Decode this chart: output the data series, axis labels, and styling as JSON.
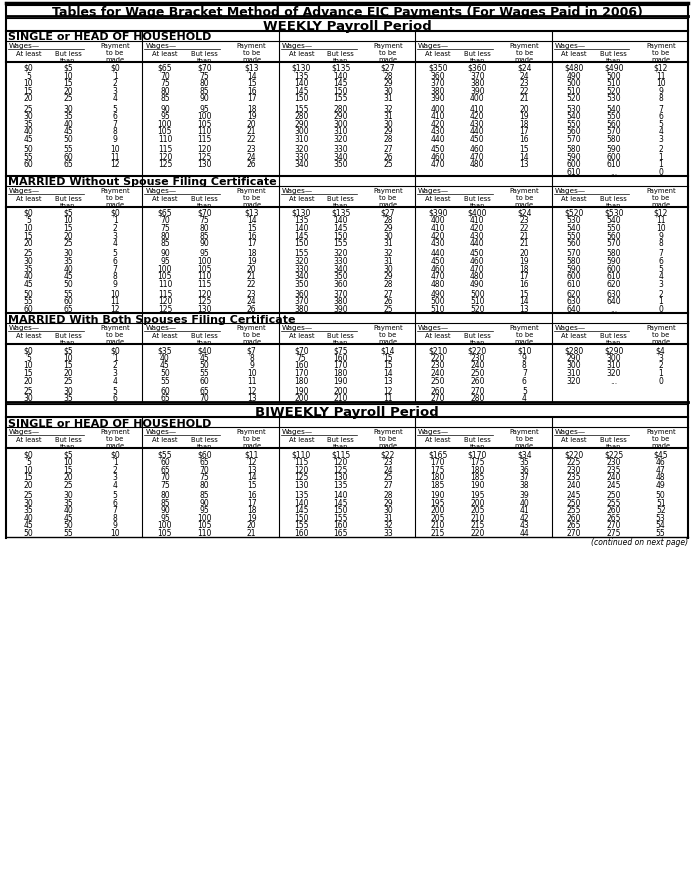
{
  "title": "Tables for Wage Bracket Method of Advance EIC Payments (For Wages Paid in 2006)",
  "section1_title": "WEEKLY Payroll Period",
  "section1_sub1": "SINGLE or HEAD OF HOUSEHOLD",
  "section1_sub2": "MARRIED Without Spouse Filing Certificate",
  "section1_sub3": "MARRIED With Both Spouses Filing Certificate",
  "section2_title": "BIWEEKLY Payroll Period",
  "section2_sub1": "SINGLE or HEAD OF HOUSEHOLD",
  "weekly_single": [
    [
      "$0",
      "$5",
      "$0",
      "$65",
      "$70",
      "$13",
      "$130",
      "$135",
      "$27",
      "$350",
      "$360",
      "$24",
      "$480",
      "$490",
      "$12"
    ],
    [
      "5",
      "10",
      "1",
      "70",
      "75",
      "14",
      "135",
      "140",
      "28",
      "360",
      "370",
      "24",
      "490",
      "500",
      "11"
    ],
    [
      "10",
      "15",
      "2",
      "75",
      "80",
      "15",
      "140",
      "145",
      "29",
      "370",
      "380",
      "23",
      "500",
      "510",
      "10"
    ],
    [
      "15",
      "20",
      "3",
      "80",
      "85",
      "16",
      "145",
      "150",
      "30",
      "380",
      "390",
      "22",
      "510",
      "520",
      "9"
    ],
    [
      "20",
      "25",
      "4",
      "85",
      "90",
      "17",
      "150",
      "155",
      "31",
      "390",
      "400",
      "21",
      "520",
      "530",
      "8"
    ],
    [
      "25",
      "30",
      "5",
      "90",
      "95",
      "18",
      "155",
      "280",
      "32",
      "400",
      "410",
      "20",
      "530",
      "540",
      "7"
    ],
    [
      "30",
      "35",
      "6",
      "95",
      "100",
      "19",
      "280",
      "290",
      "31",
      "410",
      "420",
      "19",
      "540",
      "550",
      "6"
    ],
    [
      "35",
      "40",
      "7",
      "100",
      "105",
      "20",
      "290",
      "300",
      "30",
      "420",
      "430",
      "18",
      "550",
      "560",
      "5"
    ],
    [
      "40",
      "45",
      "8",
      "105",
      "110",
      "21",
      "300",
      "310",
      "29",
      "430",
      "440",
      "17",
      "560",
      "570",
      "4"
    ],
    [
      "45",
      "50",
      "9",
      "110",
      "115",
      "22",
      "310",
      "320",
      "28",
      "440",
      "450",
      "16",
      "570",
      "580",
      "3"
    ],
    [
      "50",
      "55",
      "10",
      "115",
      "120",
      "23",
      "320",
      "330",
      "27",
      "450",
      "460",
      "15",
      "580",
      "590",
      "2"
    ],
    [
      "55",
      "60",
      "11",
      "120",
      "125",
      "24",
      "330",
      "340",
      "26",
      "460",
      "470",
      "14",
      "590",
      "600",
      "1"
    ],
    [
      "60",
      "65",
      "12",
      "125",
      "130",
      "26",
      "340",
      "350",
      "25",
      "470",
      "480",
      "13",
      "600",
      "610",
      "1"
    ],
    [
      "",
      "",
      "",
      "",
      "",
      "",
      "",
      "",
      "",
      "",
      "",
      "",
      "610",
      "...",
      "0"
    ]
  ],
  "weekly_married_no_cert": [
    [
      "$0",
      "$5",
      "$0",
      "$65",
      "$70",
      "$13",
      "$130",
      "$135",
      "$27",
      "$390",
      "$400",
      "$24",
      "$520",
      "$530",
      "$12"
    ],
    [
      "5",
      "10",
      "1",
      "70",
      "75",
      "14",
      "135",
      "140",
      "28",
      "400",
      "410",
      "23",
      "530",
      "540",
      "11"
    ],
    [
      "10",
      "15",
      "2",
      "75",
      "80",
      "15",
      "140",
      "145",
      "29",
      "410",
      "420",
      "22",
      "540",
      "550",
      "10"
    ],
    [
      "15",
      "20",
      "3",
      "80",
      "85",
      "16",
      "145",
      "150",
      "30",
      "420",
      "430",
      "21",
      "550",
      "560",
      "9"
    ],
    [
      "20",
      "25",
      "4",
      "85",
      "90",
      "17",
      "150",
      "155",
      "31",
      "430",
      "440",
      "21",
      "560",
      "570",
      "8"
    ],
    [
      "25",
      "30",
      "5",
      "90",
      "95",
      "18",
      "155",
      "320",
      "32",
      "440",
      "450",
      "20",
      "570",
      "580",
      "7"
    ],
    [
      "30",
      "35",
      "6",
      "95",
      "100",
      "19",
      "320",
      "330",
      "31",
      "450",
      "460",
      "19",
      "580",
      "590",
      "6"
    ],
    [
      "35",
      "40",
      "7",
      "100",
      "105",
      "20",
      "330",
      "340",
      "30",
      "460",
      "470",
      "18",
      "590",
      "600",
      "5"
    ],
    [
      "40",
      "45",
      "8",
      "105",
      "110",
      "21",
      "340",
      "350",
      "29",
      "470",
      "480",
      "17",
      "600",
      "610",
      "4"
    ],
    [
      "45",
      "50",
      "9",
      "110",
      "115",
      "22",
      "350",
      "360",
      "28",
      "480",
      "490",
      "16",
      "610",
      "620",
      "3"
    ],
    [
      "50",
      "55",
      "10",
      "115",
      "120",
      "23",
      "360",
      "370",
      "27",
      "490",
      "500",
      "15",
      "620",
      "630",
      "2"
    ],
    [
      "55",
      "60",
      "11",
      "120",
      "125",
      "24",
      "370",
      "380",
      "26",
      "500",
      "510",
      "14",
      "630",
      "640",
      "1"
    ],
    [
      "60",
      "65",
      "12",
      "125",
      "130",
      "26",
      "380",
      "390",
      "25",
      "510",
      "520",
      "13",
      "640",
      "...",
      "0"
    ]
  ],
  "weekly_married_both": [
    [
      "$0",
      "$5",
      "$0",
      "$35",
      "$40",
      "$7",
      "$70",
      "$75",
      "$14",
      "$210",
      "$220",
      "$10",
      "$280",
      "$290",
      "$4"
    ],
    [
      "5",
      "10",
      "1",
      "40",
      "45",
      "8",
      "75",
      "160",
      "15",
      "220",
      "230",
      "9",
      "290",
      "300",
      "3"
    ],
    [
      "10",
      "15",
      "2",
      "45",
      "50",
      "9",
      "160",
      "170",
      "15",
      "230",
      "240",
      "8",
      "300",
      "310",
      "2"
    ],
    [
      "15",
      "20",
      "3",
      "50",
      "55",
      "10",
      "170",
      "180",
      "14",
      "240",
      "250",
      "7",
      "310",
      "320",
      "1"
    ],
    [
      "20",
      "25",
      "4",
      "55",
      "60",
      "11",
      "180",
      "190",
      "13",
      "250",
      "260",
      "6",
      "320",
      "...",
      "0"
    ],
    [
      "25",
      "30",
      "5",
      "60",
      "65",
      "12",
      "190",
      "200",
      "12",
      "260",
      "270",
      "5",
      "",
      "",
      ""
    ],
    [
      "30",
      "35",
      "6",
      "65",
      "70",
      "13",
      "200",
      "210",
      "11",
      "270",
      "280",
      "4",
      "",
      "",
      ""
    ]
  ],
  "biweekly_single": [
    [
      "$0",
      "$5",
      "$0",
      "$55",
      "$60",
      "$11",
      "$110",
      "$115",
      "$22",
      "$165",
      "$170",
      "$34",
      "$220",
      "$225",
      "$45"
    ],
    [
      "5",
      "10",
      "1",
      "60",
      "65",
      "12",
      "115",
      "120",
      "23",
      "170",
      "175",
      "35",
      "225",
      "230",
      "46"
    ],
    [
      "10",
      "15",
      "2",
      "65",
      "70",
      "13",
      "120",
      "125",
      "24",
      "175",
      "180",
      "36",
      "230",
      "235",
      "47"
    ],
    [
      "15",
      "20",
      "3",
      "70",
      "75",
      "14",
      "125",
      "130",
      "25",
      "180",
      "185",
      "37",
      "235",
      "240",
      "48"
    ],
    [
      "20",
      "25",
      "4",
      "75",
      "80",
      "15",
      "130",
      "135",
      "27",
      "185",
      "190",
      "38",
      "240",
      "245",
      "49"
    ],
    [
      "25",
      "30",
      "5",
      "80",
      "85",
      "16",
      "135",
      "140",
      "28",
      "190",
      "195",
      "39",
      "245",
      "250",
      "50"
    ],
    [
      "30",
      "35",
      "6",
      "85",
      "90",
      "17",
      "140",
      "145",
      "29",
      "195",
      "200",
      "40",
      "250",
      "255",
      "51"
    ],
    [
      "35",
      "40",
      "7",
      "90",
      "95",
      "18",
      "145",
      "150",
      "30",
      "200",
      "205",
      "41",
      "255",
      "260",
      "52"
    ],
    [
      "40",
      "45",
      "8",
      "95",
      "100",
      "19",
      "150",
      "155",
      "31",
      "205",
      "210",
      "42",
      "260",
      "265",
      "53"
    ],
    [
      "45",
      "50",
      "9",
      "100",
      "105",
      "20",
      "155",
      "160",
      "32",
      "210",
      "215",
      "43",
      "265",
      "270",
      "54"
    ],
    [
      "50",
      "55",
      "10",
      "105",
      "110",
      "21",
      "160",
      "165",
      "33",
      "215",
      "220",
      "44",
      "270",
      "275",
      "55"
    ]
  ]
}
